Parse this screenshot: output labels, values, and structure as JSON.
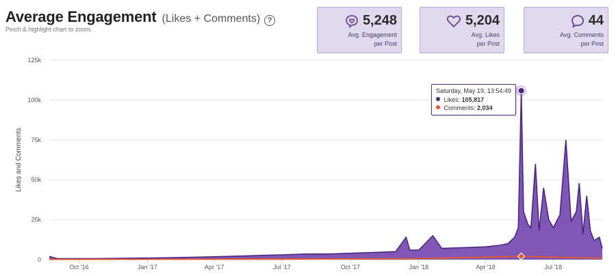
{
  "header": {
    "title": "Average Engagement",
    "subtitle": "(Likes + Comments)",
    "hint": "Pinch & highlight chart to zoom.",
    "help_glyph": "?"
  },
  "stats": [
    {
      "icon": "heart-bubble-icon",
      "value": "5,248",
      "label_line1": "Avg. Engagement",
      "label_line2": "per Post"
    },
    {
      "icon": "heart-icon",
      "value": "5,204",
      "label_line1": "Avg. Likes",
      "label_line2": "per Post"
    },
    {
      "icon": "comment-bubble-icon",
      "value": "44",
      "label_line1": "Avg. Comments",
      "label_line2": "per Post"
    }
  ],
  "tooltip": {
    "date": "Saturday, May 19, 13:54:49",
    "likes_label": "Likes:",
    "likes_value": "105,817",
    "comments_label": "Comments:",
    "comments_value": "2,034"
  },
  "colors": {
    "likes": "#4b2582",
    "likes_fill": "#6a3aa8",
    "comments": "#e8572a",
    "card_bg": "#e1d8ee"
  },
  "chart_data": {
    "type": "area",
    "ylabel": "Likes and Comments",
    "ylim": [
      0,
      125000
    ],
    "yticks": [
      0,
      25000,
      50000,
      75000,
      100000,
      125000
    ],
    "ytick_labels": [
      "0",
      "25k",
      "50k",
      "75k",
      "100k",
      "125k"
    ],
    "xlim": [
      "2016-08-22",
      "2018-09-05"
    ],
    "xticks": [
      "2016-10-01",
      "2017-01-01",
      "2017-04-01",
      "2017-07-01",
      "2017-10-01",
      "2018-01-01",
      "2018-04-01",
      "2018-07-01"
    ],
    "xtick_labels": [
      "Oct '16",
      "Jan '17",
      "Apr '17",
      "Jul '17",
      "Oct '17",
      "Jan '18",
      "Apr '18",
      "Jul '18"
    ],
    "grid": true,
    "legend": "none",
    "highlight": {
      "x": "2018-05-19",
      "likes": 105817,
      "comments": 2034
    },
    "series": [
      {
        "name": "Likes",
        "x": [
          "2016-08-22",
          "2016-09-01",
          "2016-10-01",
          "2016-11-01",
          "2016-12-01",
          "2017-01-01",
          "2017-02-01",
          "2017-03-01",
          "2017-04-01",
          "2017-05-01",
          "2017-06-01",
          "2017-07-01",
          "2017-08-01",
          "2017-09-01",
          "2017-10-01",
          "2017-11-01",
          "2017-12-01",
          "2017-12-15",
          "2017-12-20",
          "2018-01-01",
          "2018-01-20",
          "2018-02-01",
          "2018-03-01",
          "2018-04-01",
          "2018-04-20",
          "2018-05-01",
          "2018-05-10",
          "2018-05-15",
          "2018-05-19",
          "2018-05-22",
          "2018-05-28",
          "2018-06-01",
          "2018-06-07",
          "2018-06-12",
          "2018-06-18",
          "2018-06-25",
          "2018-07-01",
          "2018-07-10",
          "2018-07-18",
          "2018-07-25",
          "2018-08-01",
          "2018-08-05",
          "2018-08-10",
          "2018-08-15",
          "2018-08-20",
          "2018-08-25",
          "2018-09-01",
          "2018-09-05"
        ],
        "values": [
          2000,
          700,
          600,
          700,
          800,
          1000,
          1200,
          1500,
          1800,
          2200,
          2600,
          3000,
          3500,
          3500,
          4000,
          4500,
          5000,
          14000,
          6000,
          6000,
          15000,
          7000,
          7500,
          8000,
          9000,
          10000,
          14000,
          20000,
          105817,
          30000,
          22000,
          20000,
          60000,
          18000,
          45000,
          25000,
          20000,
          28000,
          75000,
          24000,
          30000,
          48000,
          16000,
          40000,
          18000,
          12000,
          14000,
          7000
        ]
      },
      {
        "name": "Comments",
        "x": [
          "2016-08-22",
          "2017-01-01",
          "2017-07-01",
          "2018-01-01",
          "2018-05-19",
          "2018-09-05"
        ],
        "values": [
          150,
          200,
          300,
          600,
          2034,
          800
        ]
      }
    ]
  }
}
